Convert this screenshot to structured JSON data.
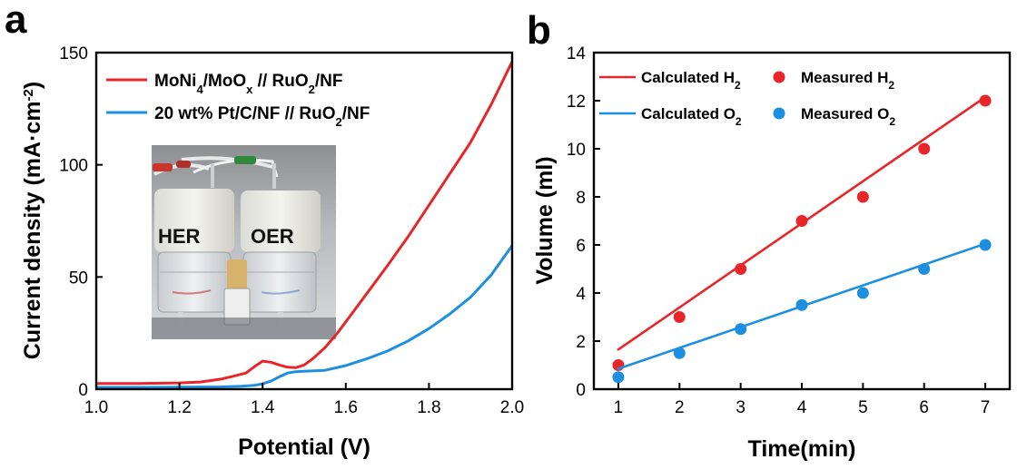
{
  "chart_data": [
    {
      "type": "line",
      "panel_label": "a",
      "xlabel": "Potential (V)",
      "ylabel": "Current density (mA·cm",
      "ylabel_sup": "-2",
      "ylabel_end": ")",
      "xlim": [
        1.0,
        2.0
      ],
      "ylim": [
        0,
        150
      ],
      "xticks": [
        "1.0",
        "1.2",
        "1.4",
        "1.6",
        "1.8",
        "2.0"
      ],
      "xtick_values": [
        1.0,
        1.2,
        1.4,
        1.6,
        1.8,
        2.0
      ],
      "yticks": [
        "0",
        "50",
        "100",
        "150"
      ],
      "ytick_values": [
        0,
        50,
        100,
        150
      ],
      "legend_position": "top-left",
      "series": [
        {
          "name": "MoNi4/MoOx // RuO2/NF",
          "color": "#e8262a",
          "x": [
            1.0,
            1.1,
            1.2,
            1.25,
            1.3,
            1.33,
            1.36,
            1.38,
            1.4,
            1.42,
            1.44,
            1.46,
            1.48,
            1.5,
            1.52,
            1.55,
            1.58,
            1.62,
            1.66,
            1.7,
            1.75,
            1.8,
            1.85,
            1.9,
            1.95,
            2.0
          ],
          "y": [
            2.5,
            2.5,
            2.8,
            3.2,
            4.5,
            5.8,
            7.2,
            10.0,
            12.5,
            12.0,
            10.8,
            9.8,
            9.6,
            10.8,
            13.5,
            18.5,
            25.0,
            35.0,
            45.0,
            55.0,
            68.0,
            82.0,
            96.0,
            110.0,
            127.0,
            146.0
          ]
        },
        {
          "name": "20 wt% Pt/C/NF // RuO2/NF",
          "color": "#1d8fe0",
          "x": [
            1.0,
            1.1,
            1.2,
            1.3,
            1.35,
            1.38,
            1.4,
            1.42,
            1.44,
            1.46,
            1.48,
            1.5,
            1.55,
            1.6,
            1.65,
            1.7,
            1.75,
            1.8,
            1.85,
            1.9,
            1.95,
            2.0
          ],
          "y": [
            0.8,
            0.8,
            0.9,
            1.0,
            1.3,
            1.7,
            2.4,
            3.6,
            5.5,
            7.2,
            7.8,
            8.0,
            8.4,
            10.5,
            13.5,
            17.0,
            21.5,
            27.0,
            33.5,
            41.0,
            51.0,
            64.0
          ]
        }
      ],
      "inset_photo_labels": [
        "HER",
        "OER"
      ]
    },
    {
      "type": "scatter",
      "panel_label": "b",
      "xlabel": "Time(min)",
      "ylabel": "Volume (ml)",
      "xlim": [
        0.6,
        7.4
      ],
      "ylim": [
        0,
        14
      ],
      "xticks": [
        "1",
        "2",
        "3",
        "4",
        "5",
        "6",
        "7"
      ],
      "xtick_values": [
        1,
        2,
        3,
        4,
        5,
        6,
        7
      ],
      "yticks": [
        "0",
        "2",
        "4",
        "6",
        "8",
        "10",
        "12",
        "14"
      ],
      "ytick_values": [
        0,
        2,
        4,
        6,
        8,
        10,
        12,
        14
      ],
      "legend_position": "top-left",
      "series": [
        {
          "name": "Calculated H2",
          "kind": "line",
          "color": "#e8262a",
          "x": [
            1,
            7
          ],
          "y": [
            1.65,
            12.15
          ]
        },
        {
          "name": "Measured H2",
          "kind": "points",
          "color": "#e8262a",
          "x": [
            1,
            2,
            3,
            4,
            5,
            6,
            7
          ],
          "y": [
            1.0,
            3.0,
            5.0,
            7.0,
            8.0,
            10.0,
            12.0
          ]
        },
        {
          "name": "Calculated O2",
          "kind": "line",
          "color": "#1d8fe0",
          "x": [
            1,
            7
          ],
          "y": [
            0.85,
            6.05
          ]
        },
        {
          "name": "Measured O2",
          "kind": "points",
          "color": "#1d8fe0",
          "x": [
            1,
            2,
            3,
            4,
            5,
            6,
            7
          ],
          "y": [
            0.5,
            1.5,
            2.5,
            3.5,
            4.0,
            5.0,
            6.0
          ]
        }
      ]
    }
  ]
}
